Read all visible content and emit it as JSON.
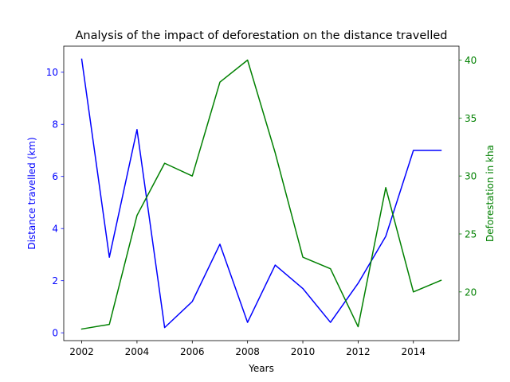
{
  "chart_data": {
    "type": "line",
    "title": "Analysis of the impact of deforestation on the distance travelled",
    "xlabel": "Years",
    "ylabel": "Distance travelled (km)",
    "y2label": "Deforestation in kha",
    "x": [
      2002,
      2003,
      2004,
      2005,
      2006,
      2007,
      2008,
      2009,
      2010,
      2011,
      2012,
      2013,
      2014,
      2015
    ],
    "x_ticks": [
      2002,
      2004,
      2006,
      2008,
      2010,
      2012,
      2014
    ],
    "y_ticks": [
      0,
      2,
      4,
      6,
      8,
      10
    ],
    "y2_ticks": [
      20,
      25,
      30,
      35,
      40
    ],
    "xlim": [
      2001.35,
      2015.65
    ],
    "ylim": [
      -0.3,
      11.0
    ],
    "y2lim": [
      15.8,
      41.2
    ],
    "grid": false,
    "series": [
      {
        "axis": "left",
        "color": "#0000ff",
        "values": [
          10.5,
          2.9,
          7.8,
          0.2,
          1.2,
          3.4,
          0.4,
          2.6,
          1.7,
          0.4,
          1.9,
          3.7,
          7.0,
          7.0
        ]
      },
      {
        "axis": "right",
        "color": "#008000",
        "values": [
          16.8,
          17.2,
          26.6,
          31.1,
          30.0,
          38.1,
          40.0,
          32.0,
          23.0,
          22.0,
          17.0,
          29.0,
          20.0,
          21.0
        ]
      }
    ],
    "colors": {
      "left_axis": "#0000ff",
      "right_axis": "#008000",
      "frame": "#000000"
    }
  }
}
